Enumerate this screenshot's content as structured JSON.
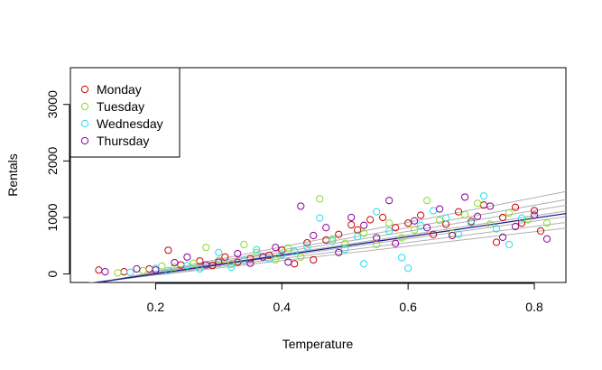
{
  "chart_data": {
    "type": "scatter",
    "title": "",
    "xlabel": "Temperature",
    "ylabel": "Rentals",
    "xlim": [
      0.065,
      0.85
    ],
    "ylim": [
      -150,
      3650
    ],
    "x_ticks": [
      0.2,
      0.4,
      0.6,
      0.8
    ],
    "x_tick_labels": [
      "0.2",
      "0.4",
      "0.6",
      "0.8"
    ],
    "y_ticks": [
      0,
      1000,
      2000,
      3000
    ],
    "y_tick_labels": [
      "0",
      "1000",
      "2000",
      "3000"
    ],
    "grid": false,
    "legend": {
      "position": "top-left",
      "entries": [
        {
          "label": "Monday",
          "color": "#CC0000"
        },
        {
          "label": "Tuesday",
          "color": "#88DD22"
        },
        {
          "label": "Wednesday",
          "color": "#22DDEE"
        },
        {
          "label": "Thursday",
          "color": "#880099"
        }
      ]
    },
    "regression_lines": {
      "overall": {
        "intercept": -325,
        "slope": 1640,
        "color": "#1a1a8c"
      },
      "gray_slopes": [
        1280,
        1420,
        1560,
        1700,
        1840,
        1980,
        2180
      ],
      "gray_anchor": {
        "x": 0.13,
        "y": -110
      },
      "gray_color": "#b0b0b0"
    },
    "series": [
      {
        "name": "Monday",
        "color": "#CC0000",
        "points": [
          [
            0.11,
            70
          ],
          [
            0.15,
            40
          ],
          [
            0.19,
            90
          ],
          [
            0.22,
            420
          ],
          [
            0.24,
            160
          ],
          [
            0.27,
            230
          ],
          [
            0.29,
            150
          ],
          [
            0.31,
            300
          ],
          [
            0.33,
            210
          ],
          [
            0.35,
            270
          ],
          [
            0.38,
            330
          ],
          [
            0.4,
            420
          ],
          [
            0.42,
            180
          ],
          [
            0.44,
            550
          ],
          [
            0.45,
            250
          ],
          [
            0.47,
            600
          ],
          [
            0.49,
            700
          ],
          [
            0.51,
            870
          ],
          [
            0.52,
            780
          ],
          [
            0.54,
            960
          ],
          [
            0.56,
            1000
          ],
          [
            0.58,
            820
          ],
          [
            0.6,
            900
          ],
          [
            0.62,
            1040
          ],
          [
            0.64,
            700
          ],
          [
            0.66,
            880
          ],
          [
            0.68,
            1100
          ],
          [
            0.7,
            930
          ],
          [
            0.72,
            1220
          ],
          [
            0.74,
            560
          ],
          [
            0.75,
            1000
          ],
          [
            0.77,
            1180
          ],
          [
            0.78,
            900
          ],
          [
            0.8,
            1120
          ],
          [
            0.81,
            760
          ]
        ]
      },
      {
        "name": "Tuesday",
        "color": "#88DD22",
        "points": [
          [
            0.14,
            20
          ],
          [
            0.18,
            60
          ],
          [
            0.21,
            140
          ],
          [
            0.23,
            120
          ],
          [
            0.26,
            190
          ],
          [
            0.28,
            470
          ],
          [
            0.3,
            240
          ],
          [
            0.32,
            170
          ],
          [
            0.34,
            520
          ],
          [
            0.36,
            380
          ],
          [
            0.39,
            250
          ],
          [
            0.41,
            460
          ],
          [
            0.43,
            300
          ],
          [
            0.46,
            1330
          ],
          [
            0.48,
            620
          ],
          [
            0.5,
            540
          ],
          [
            0.53,
            720
          ],
          [
            0.55,
            520
          ],
          [
            0.57,
            900
          ],
          [
            0.59,
            640
          ],
          [
            0.61,
            780
          ],
          [
            0.63,
            1300
          ],
          [
            0.65,
            950
          ],
          [
            0.67,
            720
          ],
          [
            0.69,
            1050
          ],
          [
            0.71,
            1250
          ],
          [
            0.73,
            880
          ],
          [
            0.76,
            1080
          ],
          [
            0.79,
            960
          ],
          [
            0.82,
            900
          ]
        ]
      },
      {
        "name": "Wednesday",
        "color": "#22DDEE",
        "points": [
          [
            0.16,
            30
          ],
          [
            0.2,
            100
          ],
          [
            0.22,
            60
          ],
          [
            0.25,
            150
          ],
          [
            0.27,
            90
          ],
          [
            0.3,
            380
          ],
          [
            0.32,
            120
          ],
          [
            0.34,
            240
          ],
          [
            0.36,
            430
          ],
          [
            0.38,
            270
          ],
          [
            0.4,
            340
          ],
          [
            0.42,
            400
          ],
          [
            0.44,
            480
          ],
          [
            0.46,
            990
          ],
          [
            0.48,
            580
          ],
          [
            0.5,
            440
          ],
          [
            0.52,
            660
          ],
          [
            0.53,
            180
          ],
          [
            0.55,
            1100
          ],
          [
            0.57,
            760
          ],
          [
            0.59,
            290
          ],
          [
            0.6,
            100
          ],
          [
            0.62,
            860
          ],
          [
            0.64,
            1120
          ],
          [
            0.66,
            990
          ],
          [
            0.68,
            700
          ],
          [
            0.7,
            900
          ],
          [
            0.72,
            1380
          ],
          [
            0.74,
            800
          ],
          [
            0.76,
            520
          ],
          [
            0.78,
            990
          ]
        ]
      },
      {
        "name": "Thursday",
        "color": "#880099",
        "points": [
          [
            0.12,
            40
          ],
          [
            0.17,
            90
          ],
          [
            0.2,
            70
          ],
          [
            0.23,
            200
          ],
          [
            0.25,
            300
          ],
          [
            0.28,
            160
          ],
          [
            0.3,
            210
          ],
          [
            0.33,
            360
          ],
          [
            0.35,
            190
          ],
          [
            0.37,
            300
          ],
          [
            0.39,
            470
          ],
          [
            0.41,
            210
          ],
          [
            0.43,
            1200
          ],
          [
            0.45,
            680
          ],
          [
            0.47,
            820
          ],
          [
            0.49,
            380
          ],
          [
            0.51,
            1000
          ],
          [
            0.53,
            860
          ],
          [
            0.55,
            640
          ],
          [
            0.57,
            1300
          ],
          [
            0.58,
            540
          ],
          [
            0.61,
            940
          ],
          [
            0.63,
            820
          ],
          [
            0.65,
            1150
          ],
          [
            0.67,
            680
          ],
          [
            0.69,
            1360
          ],
          [
            0.71,
            1020
          ],
          [
            0.73,
            1200
          ],
          [
            0.75,
            650
          ],
          [
            0.77,
            840
          ],
          [
            0.8,
            1040
          ],
          [
            0.82,
            620
          ]
        ]
      }
    ]
  }
}
